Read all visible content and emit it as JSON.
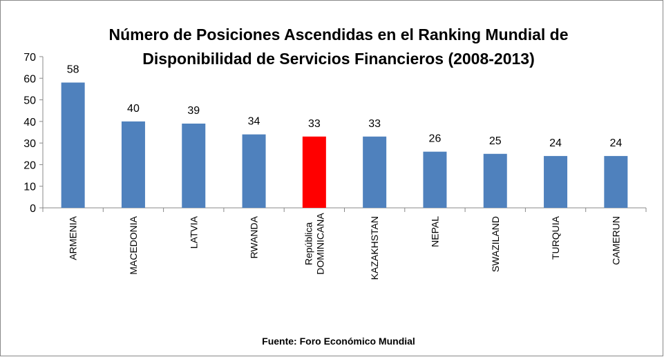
{
  "chart_data": {
    "type": "bar",
    "title": "Número de Posiciones Ascendidas en el Ranking Mundial de Disponibilidad de Servicios Financieros (2008-2013)",
    "categories": [
      "ARMENIA",
      "MACEDONIA",
      "LATVIA",
      "RWANDA",
      "República\nDOMINICANA",
      "KAZAKHSTAN",
      "NEPAL",
      "SWAZILAND",
      "TURQUIA",
      "CAMERUN"
    ],
    "values": [
      58,
      40,
      39,
      34,
      33,
      33,
      26,
      25,
      24,
      24
    ],
    "colors": [
      "#4f81bd",
      "#4f81bd",
      "#4f81bd",
      "#4f81bd",
      "#ff0000",
      "#4f81bd",
      "#4f81bd",
      "#4f81bd",
      "#4f81bd",
      "#4f81bd"
    ],
    "ylim": [
      0,
      70
    ],
    "yticks": [
      0,
      10,
      20,
      30,
      40,
      50,
      60,
      70
    ],
    "source": "Fuente: Foro Económico Mundial"
  }
}
